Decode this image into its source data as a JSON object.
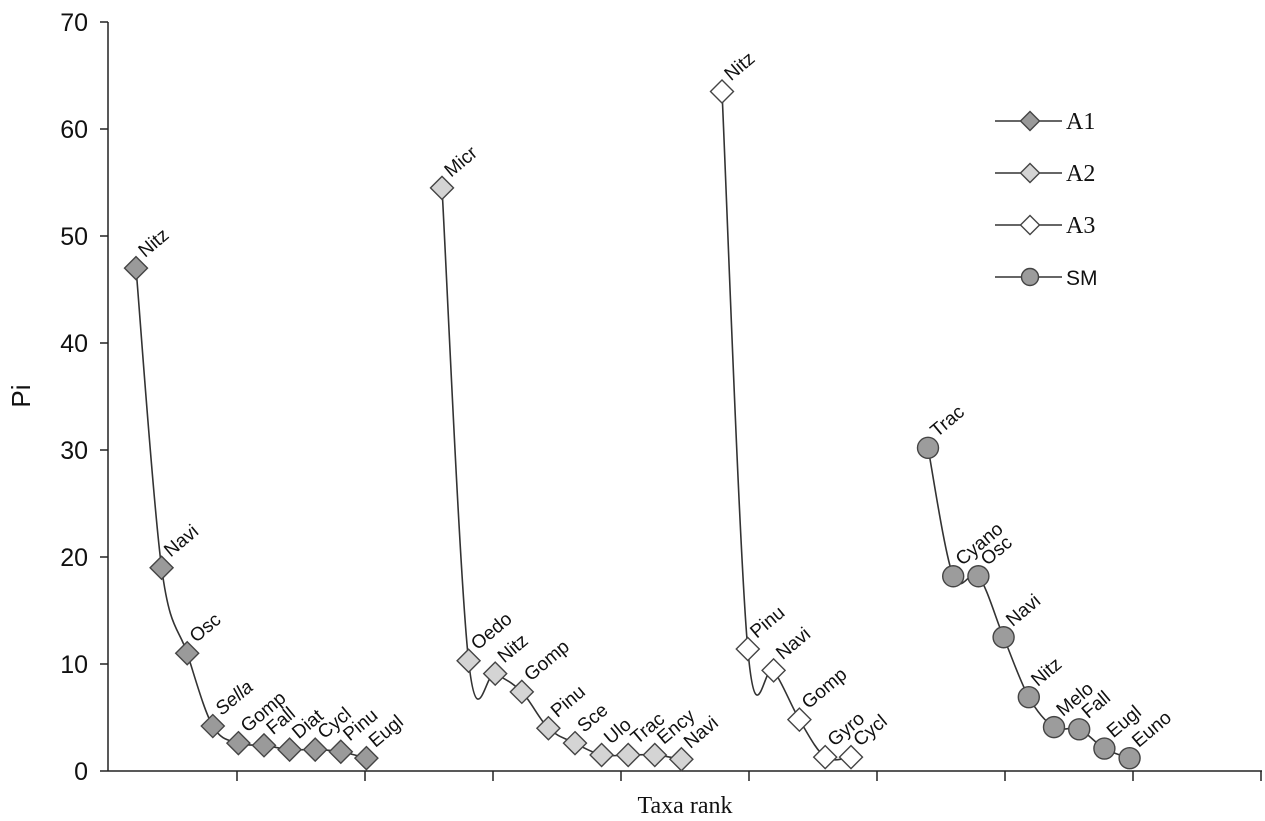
{
  "chart_data": {
    "type": "line",
    "xlabel": "Taxa rank",
    "ylabel": "Pi",
    "ylim": [
      0,
      70
    ],
    "yticks": [
      "0",
      "10",
      "20",
      "30",
      "40",
      "50",
      "60",
      "70"
    ],
    "grid": false,
    "legend_position": "top-right",
    "series": [
      {
        "name": "A1",
        "marker": "diamond",
        "color": "#9a9a9a",
        "values": [
          47,
          19,
          11,
          4.2,
          2.6,
          2.4,
          2.0,
          2.0,
          1.8,
          1.2
        ],
        "labels": [
          "Nitz",
          "Navi",
          "Osc",
          "Sella",
          "Gomp",
          "Fall",
          "Diat",
          "Cycl",
          "Pinu",
          "Eugl"
        ]
      },
      {
        "name": "A2",
        "marker": "diamond",
        "color": "#d4d4d4",
        "values": [
          54.5,
          10.3,
          9.1,
          7.4,
          4.0,
          2.6,
          1.5,
          1.5,
          1.5,
          1.1
        ],
        "labels": [
          "Micr",
          "Oedo",
          "Nitz",
          "Gomp",
          "Pinu",
          "Sce",
          "Ulo",
          "Trac",
          "Ency",
          "Navi"
        ]
      },
      {
        "name": "A3",
        "marker": "diamond",
        "color": "#ffffff",
        "values": [
          63.5,
          11.4,
          9.4,
          4.8,
          1.3,
          1.3
        ],
        "labels": [
          "Nitz",
          "Pinu",
          "Navi",
          "Gomp",
          "Gyro",
          "Cycl"
        ]
      },
      {
        "name": "SM",
        "marker": "circle",
        "color": "#9c9c9c",
        "values": [
          30.2,
          18.2,
          18.2,
          12.5,
          6.9,
          4.1,
          3.9,
          2.1,
          1.2
        ],
        "labels": [
          "Trac",
          "Cyano",
          "Osc",
          "Navi",
          "Nitz",
          "Melo",
          "Fall",
          "Eugl",
          "Euno"
        ]
      }
    ]
  }
}
